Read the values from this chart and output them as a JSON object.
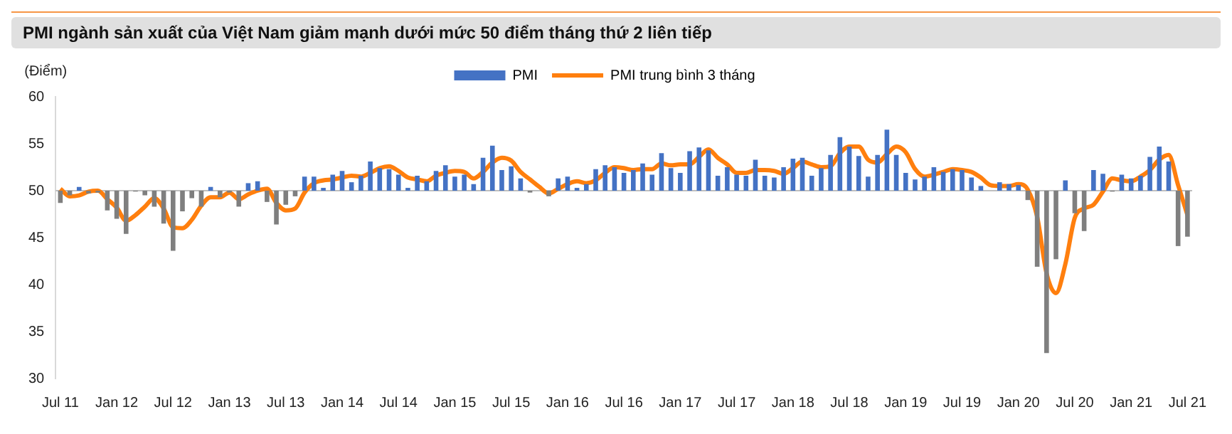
{
  "chart_data": {
    "type": "bar",
    "title": "PMI ngành sản xuất của Việt Nam giảm mạnh dưới mức 50 điểm tháng thứ 2 liên tiếp",
    "ylabel": "(Điểm)",
    "categories": [
      "Jul 11",
      null,
      null,
      null,
      null,
      null,
      "Jan 12",
      null,
      null,
      null,
      null,
      null,
      "Jul 12",
      null,
      null,
      null,
      null,
      null,
      "Jan 13",
      null,
      null,
      null,
      null,
      null,
      "Jul 13",
      null,
      null,
      null,
      null,
      null,
      "Jan 14",
      null,
      null,
      null,
      null,
      null,
      "Jul 14",
      null,
      null,
      null,
      null,
      null,
      "Jan 15",
      null,
      null,
      null,
      null,
      null,
      "Jul 15",
      null,
      null,
      null,
      null,
      null,
      "Jan 16",
      null,
      null,
      null,
      null,
      null,
      "Jul 16",
      null,
      null,
      null,
      null,
      null,
      "Jan 17",
      null,
      null,
      null,
      null,
      null,
      "Jul 17",
      null,
      null,
      null,
      null,
      null,
      "Jan 18",
      null,
      null,
      null,
      null,
      null,
      "Jul 18",
      null,
      null,
      null,
      null,
      null,
      "Jan 19",
      null,
      null,
      null,
      null,
      null,
      "Jul 19",
      null,
      null,
      null,
      null,
      null,
      "Jan 20",
      null,
      null,
      null,
      null,
      null,
      "Jul 20",
      null,
      null,
      null,
      null,
      null,
      "Jan 21",
      null,
      null,
      null,
      null,
      null,
      "Jul 21"
    ],
    "series": [
      {
        "name": "PMI",
        "color": "#4472c4",
        "base": [
          50,
          50,
          50,
          50,
          50,
          50,
          50,
          50,
          50,
          50,
          50,
          50,
          50,
          50,
          50,
          50,
          50,
          50,
          50,
          50,
          50,
          50,
          50,
          50,
          50,
          50,
          50,
          50,
          50,
          50,
          50,
          50,
          50,
          50,
          50,
          50,
          50,
          50,
          50,
          50,
          50,
          50,
          50,
          50,
          50,
          50,
          50,
          50,
          50,
          50,
          50,
          null,
          50,
          50,
          50,
          50,
          50,
          50,
          50,
          50,
          50,
          50,
          50,
          50,
          50,
          50,
          50,
          50,
          50,
          50,
          50,
          50,
          50,
          50,
          50,
          50,
          50,
          50,
          50,
          50,
          50,
          50,
          50,
          50,
          50,
          50,
          50,
          50,
          50,
          50,
          50,
          50,
          50,
          50,
          50,
          50,
          50,
          50,
          50,
          null,
          50,
          50,
          50,
          50,
          50,
          50,
          50,
          50,
          50,
          50,
          50,
          50,
          50,
          50,
          50,
          50,
          50,
          50,
          50,
          50,
          50
        ],
        "values": [
          -1.3,
          -0.5,
          0.4,
          -0.3,
          -0.2,
          -2.1,
          -3.0,
          -4.6,
          -0.1,
          -0.5,
          -1.7,
          -3.5,
          -6.4,
          -2.2,
          -0.8,
          -1.7,
          0.4,
          -0.7,
          -0.2,
          -1.7,
          0.8,
          1.0,
          -1.2,
          -3.6,
          -1.5,
          -0.6,
          1.5,
          1.5,
          0.3,
          1.7,
          2.1,
          0.9,
          1.6,
          3.1,
          2.4,
          2.3,
          1.7,
          0.3,
          1.6,
          1.0,
          2.1,
          2.7,
          1.5,
          1.7,
          0.7,
          3.5,
          4.8,
          2.2,
          2.6,
          1.3,
          -0.2,
          null,
          -0.6,
          1.3,
          1.5,
          0.3,
          0.7,
          2.3,
          2.7,
          2.5,
          1.9,
          2.2,
          2.9,
          1.7,
          4.0,
          2.4,
          1.9,
          4.2,
          4.6,
          4.3,
          1.6,
          2.5,
          1.7,
          1.6,
          3.3,
          1.6,
          1.4,
          2.5,
          3.4,
          3.5,
          1.6,
          2.4,
          3.8,
          5.7,
          4.7,
          3.7,
          1.5,
          3.8,
          6.5,
          3.8,
          1.9,
          1.2,
          1.5,
          2.5,
          2.0,
          2.3,
          2.2,
          1.4,
          0.5,
          null,
          0.9,
          0.7,
          0.6,
          -1.0,
          -8.1,
          -17.3,
          -7.3,
          1.1,
          -2.4,
          -4.3,
          2.2,
          1.8,
          -0.1,
          1.7,
          1.3,
          1.6,
          3.6,
          4.7,
          3.1,
          -5.9,
          -4.9
        ],
        "colors": [
          "#7f7f7f",
          "#7f7f7f",
          "#4472c4",
          "#7f7f7f",
          "#7f7f7f",
          "#7f7f7f",
          "#7f7f7f",
          "#7f7f7f",
          "#7f7f7f",
          "#7f7f7f",
          "#7f7f7f",
          "#7f7f7f",
          "#7f7f7f",
          "#7f7f7f",
          "#7f7f7f",
          "#7f7f7f",
          "#4472c4",
          "#7f7f7f",
          "#7f7f7f",
          "#7f7f7f",
          "#4472c4",
          "#4472c4",
          "#7f7f7f",
          "#7f7f7f",
          "#7f7f7f",
          "#7f7f7f",
          "#4472c4",
          "#4472c4",
          "#4472c4",
          "#4472c4",
          "#4472c4",
          "#4472c4",
          "#4472c4",
          "#4472c4",
          "#4472c4",
          "#4472c4",
          "#4472c4",
          "#4472c4",
          "#4472c4",
          "#4472c4",
          "#4472c4",
          "#4472c4",
          "#4472c4",
          "#4472c4",
          "#4472c4",
          "#4472c4",
          "#4472c4",
          "#4472c4",
          "#4472c4",
          "#4472c4",
          "#7f7f7f",
          "#4472c4",
          "#7f7f7f",
          "#4472c4",
          "#4472c4",
          "#4472c4",
          "#4472c4",
          "#4472c4",
          "#4472c4",
          "#4472c4",
          "#4472c4",
          "#4472c4",
          "#4472c4",
          "#4472c4",
          "#4472c4",
          "#4472c4",
          "#4472c4",
          "#4472c4",
          "#4472c4",
          "#4472c4",
          "#4472c4",
          "#4472c4",
          "#4472c4",
          "#4472c4",
          "#4472c4",
          "#4472c4",
          "#4472c4",
          "#4472c4",
          "#4472c4",
          "#4472c4",
          "#4472c4",
          "#4472c4",
          "#4472c4",
          "#4472c4",
          "#4472c4",
          "#4472c4",
          "#4472c4",
          "#4472c4",
          "#4472c4",
          "#4472c4",
          "#4472c4",
          "#4472c4",
          "#4472c4",
          "#4472c4",
          "#4472c4",
          "#4472c4",
          "#4472c4",
          "#4472c4",
          "#4472c4",
          "#4472c4",
          "#4472c4",
          "#4472c4",
          "#4472c4",
          "#7f7f7f",
          "#7f7f7f",
          "#7f7f7f",
          "#7f7f7f",
          "#4472c4",
          "#7f7f7f",
          "#7f7f7f",
          "#4472c4",
          "#4472c4",
          "#7f7f7f",
          "#4472c4",
          "#4472c4",
          "#4472c4",
          "#4472c4",
          "#4472c4",
          "#4472c4",
          "#7f7f7f",
          "#7f7f7f"
        ]
      },
      {
        "name": "PMI trung bình 3 tháng",
        "type": "line",
        "color": "#ff7f0e",
        "values": [
          50.2,
          49.4,
          49.5,
          49.9,
          50.0,
          49.1,
          48.2,
          46.8,
          47.4,
          48.3,
          49.2,
          48.1,
          46.1,
          46.0,
          46.9,
          48.4,
          49.3,
          49.3,
          49.8,
          49.1,
          49.6,
          50.0,
          50.2,
          48.7,
          47.9,
          48.1,
          49.8,
          50.8,
          51.1,
          51.2,
          51.4,
          51.6,
          51.5,
          51.9,
          52.4,
          52.6,
          52.1,
          51.4,
          51.2,
          51.0,
          51.6,
          51.9,
          52.1,
          52.0,
          51.3,
          52.0,
          53.0,
          53.5,
          53.2,
          52.0,
          51.2,
          50.4,
          49.7,
          50.2,
          50.7,
          51.0,
          50.8,
          51.1,
          51.9,
          52.5,
          52.4,
          52.2,
          52.3,
          52.3,
          52.9,
          52.7,
          52.8,
          52.8,
          53.6,
          54.4,
          53.5,
          52.8,
          51.9,
          51.9,
          52.2,
          52.2,
          52.1,
          51.8,
          52.4,
          53.1,
          52.8,
          52.5,
          52.6,
          54.0,
          54.7,
          54.7,
          53.3,
          53.0,
          53.9,
          54.7,
          54.1,
          52.3,
          51.5,
          51.7,
          52.0,
          52.3,
          52.2,
          52.0,
          51.4,
          50.6,
          50.5,
          50.5,
          50.7,
          50.1,
          47.2,
          41.2,
          39.1,
          42.2,
          47.1,
          48.1,
          48.5,
          49.9,
          51.3,
          51.1,
          51.0,
          51.5,
          52.2,
          53.3,
          53.8,
          50.6,
          47.4
        ]
      }
    ],
    "ref_lines": [
      {
        "axis": "y",
        "value": 50,
        "color": "#bfbfbf"
      }
    ],
    "ylim": [
      30,
      60
    ],
    "yticks": [
      30,
      35,
      40,
      45,
      50,
      55,
      60
    ],
    "grid": false,
    "legend": "top"
  }
}
